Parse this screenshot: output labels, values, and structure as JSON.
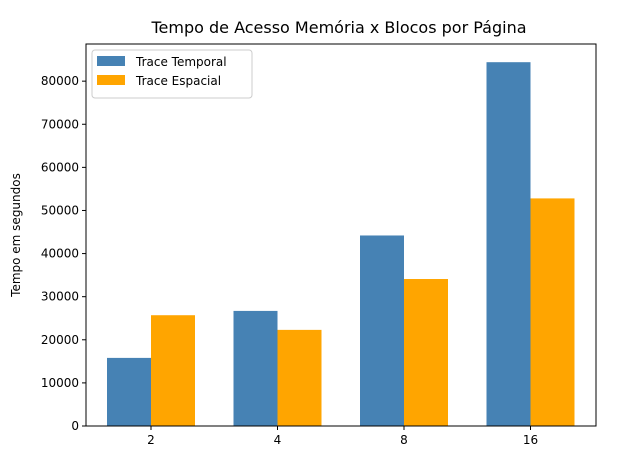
{
  "chart_data": {
    "type": "bar",
    "title": "Tempo de Acesso Memória x Blocos por Página",
    "xlabel": "",
    "ylabel": "Tempo em segundos",
    "categories": [
      "2",
      "4",
      "8",
      "16"
    ],
    "series": [
      {
        "name": "Trace Temporal",
        "color": "#4682b4",
        "values": [
          15800,
          26700,
          44200,
          84400
        ]
      },
      {
        "name": "Trace Espacial",
        "color": "#ffa500",
        "values": [
          25700,
          22300,
          34100,
          52800
        ]
      }
    ],
    "ylim": [
      0,
      88620
    ],
    "yticks": [
      0,
      10000,
      20000,
      30000,
      40000,
      50000,
      60000,
      70000,
      80000
    ],
    "grid": false,
    "legend_position": "top-left"
  }
}
